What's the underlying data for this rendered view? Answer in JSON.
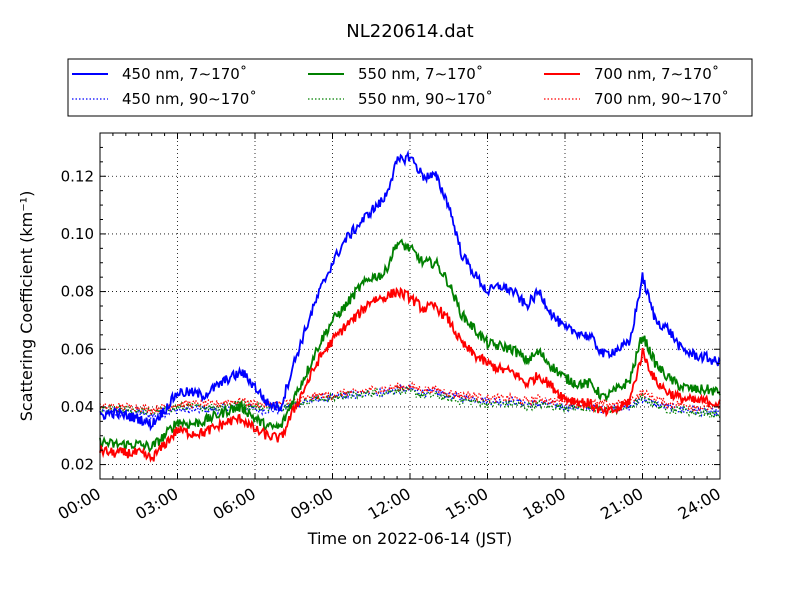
{
  "chart_data": {
    "type": "line",
    "title": "NL220614.dat",
    "xlabel": "Time on 2022-06-14 (JST)",
    "ylabel": "Scattering Coefficient (km⁻¹)",
    "x_unit": "hours",
    "xlim": [
      0,
      24
    ],
    "ylim": [
      0.015,
      0.135
    ],
    "grid": true,
    "legend_position": "top-center",
    "x_ticks": [
      "00:00",
      "03:00",
      "06:00",
      "09:00",
      "12:00",
      "15:00",
      "18:00",
      "21:00",
      "24:00"
    ],
    "y_ticks": [
      "0.02",
      "0.04",
      "0.06",
      "0.08",
      "0.10",
      "0.12"
    ],
    "x": [
      0,
      0.5,
      1,
      1.5,
      2,
      2.5,
      3,
      3.5,
      4,
      4.5,
      5,
      5.5,
      6,
      6.5,
      7,
      7.5,
      8,
      8.5,
      9,
      9.5,
      10,
      10.5,
      11,
      11.5,
      12,
      12.5,
      13,
      13.5,
      14,
      14.5,
      15,
      15.5,
      16,
      16.5,
      17,
      17.5,
      18,
      18.5,
      19,
      19.5,
      20,
      20.5,
      21,
      21.5,
      22,
      22.5,
      23,
      23.5,
      24
    ],
    "series": [
      {
        "name": "450 nm, 7∼170˚",
        "color": "#0000ff",
        "style": "solid",
        "values": [
          0.037,
          0.038,
          0.037,
          0.036,
          0.034,
          0.039,
          0.045,
          0.045,
          0.044,
          0.047,
          0.05,
          0.052,
          0.047,
          0.041,
          0.04,
          0.055,
          0.068,
          0.08,
          0.09,
          0.098,
          0.103,
          0.108,
          0.112,
          0.125,
          0.127,
          0.12,
          0.12,
          0.11,
          0.093,
          0.086,
          0.08,
          0.082,
          0.08,
          0.075,
          0.08,
          0.072,
          0.067,
          0.066,
          0.064,
          0.058,
          0.06,
          0.062,
          0.085,
          0.07,
          0.067,
          0.06,
          0.058,
          0.057,
          0.055
        ]
      },
      {
        "name": "550 nm, 7∼170˚",
        "color": "#008000",
        "style": "solid",
        "values": [
          0.028,
          0.027,
          0.027,
          0.027,
          0.026,
          0.03,
          0.035,
          0.034,
          0.035,
          0.037,
          0.039,
          0.04,
          0.036,
          0.033,
          0.033,
          0.043,
          0.052,
          0.062,
          0.07,
          0.075,
          0.081,
          0.085,
          0.086,
          0.097,
          0.095,
          0.09,
          0.09,
          0.083,
          0.072,
          0.067,
          0.062,
          0.061,
          0.06,
          0.056,
          0.059,
          0.054,
          0.05,
          0.048,
          0.048,
          0.043,
          0.046,
          0.049,
          0.065,
          0.055,
          0.05,
          0.047,
          0.046,
          0.046,
          0.045
        ]
      },
      {
        "name": "700 nm, 7∼170˚",
        "color": "#ff0000",
        "style": "solid",
        "values": [
          0.025,
          0.024,
          0.024,
          0.024,
          0.022,
          0.027,
          0.032,
          0.031,
          0.031,
          0.033,
          0.035,
          0.036,
          0.032,
          0.03,
          0.029,
          0.039,
          0.048,
          0.057,
          0.063,
          0.068,
          0.072,
          0.077,
          0.078,
          0.08,
          0.078,
          0.074,
          0.075,
          0.07,
          0.062,
          0.058,
          0.055,
          0.053,
          0.052,
          0.048,
          0.051,
          0.047,
          0.043,
          0.042,
          0.041,
          0.038,
          0.039,
          0.042,
          0.059,
          0.049,
          0.045,
          0.043,
          0.042,
          0.042,
          0.041
        ]
      },
      {
        "name": "450 nm, 90∼170˚",
        "color": "#0000ff",
        "style": "dotted",
        "values": [
          0.038,
          0.038,
          0.038,
          0.038,
          0.037,
          0.038,
          0.039,
          0.039,
          0.039,
          0.039,
          0.04,
          0.04,
          0.039,
          0.039,
          0.039,
          0.041,
          0.042,
          0.043,
          0.043,
          0.044,
          0.044,
          0.045,
          0.045,
          0.046,
          0.046,
          0.045,
          0.045,
          0.044,
          0.043,
          0.043,
          0.042,
          0.042,
          0.042,
          0.041,
          0.041,
          0.041,
          0.04,
          0.04,
          0.04,
          0.039,
          0.04,
          0.04,
          0.043,
          0.041,
          0.04,
          0.039,
          0.039,
          0.038,
          0.038
        ]
      },
      {
        "name": "550 nm, 90∼170˚",
        "color": "#008000",
        "style": "dotted",
        "values": [
          0.039,
          0.039,
          0.039,
          0.039,
          0.038,
          0.039,
          0.04,
          0.04,
          0.04,
          0.04,
          0.041,
          0.041,
          0.04,
          0.04,
          0.04,
          0.041,
          0.042,
          0.043,
          0.043,
          0.044,
          0.044,
          0.045,
          0.045,
          0.046,
          0.045,
          0.044,
          0.044,
          0.043,
          0.042,
          0.042,
          0.041,
          0.041,
          0.041,
          0.04,
          0.041,
          0.04,
          0.04,
          0.04,
          0.039,
          0.039,
          0.039,
          0.04,
          0.043,
          0.041,
          0.039,
          0.039,
          0.038,
          0.038,
          0.037
        ]
      },
      {
        "name": "700 nm, 90∼170˚",
        "color": "#ff0000",
        "style": "dotted",
        "values": [
          0.04,
          0.04,
          0.04,
          0.04,
          0.039,
          0.04,
          0.041,
          0.041,
          0.041,
          0.041,
          0.042,
          0.042,
          0.041,
          0.041,
          0.041,
          0.042,
          0.043,
          0.044,
          0.044,
          0.045,
          0.045,
          0.046,
          0.046,
          0.047,
          0.047,
          0.046,
          0.046,
          0.045,
          0.044,
          0.044,
          0.043,
          0.043,
          0.043,
          0.042,
          0.043,
          0.042,
          0.042,
          0.041,
          0.041,
          0.041,
          0.041,
          0.042,
          0.045,
          0.043,
          0.041,
          0.041,
          0.04,
          0.04,
          0.04
        ]
      }
    ],
    "legend_order": [
      0,
      3,
      1,
      4,
      2,
      5
    ]
  }
}
